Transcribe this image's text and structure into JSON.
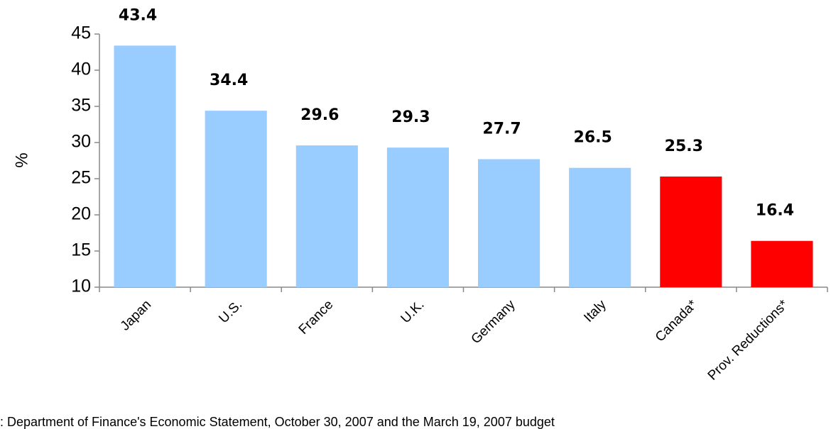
{
  "chart_data": {
    "type": "bar",
    "y_label": "%",
    "categories": [
      "Japan",
      "U.S.",
      "France",
      "U.K.",
      "Germany",
      "Italy",
      "Canada*",
      "Prov. Reductions*"
    ],
    "values": [
      43.4,
      34.4,
      29.6,
      29.3,
      27.7,
      26.5,
      25.3,
      16.4
    ],
    "colors": [
      "#99ccff",
      "#99ccff",
      "#99ccff",
      "#99ccff",
      "#99ccff",
      "#99ccff",
      "#ff0000",
      "#ff0000"
    ],
    "ylim": [
      10,
      45
    ],
    "yticks": [
      10,
      15,
      20,
      25,
      30,
      35,
      40,
      45
    ],
    "grid": false,
    "footnote": ": Department of Finance's Economic Statement, October 30, 2007 and the March 19, 2007 budget"
  }
}
